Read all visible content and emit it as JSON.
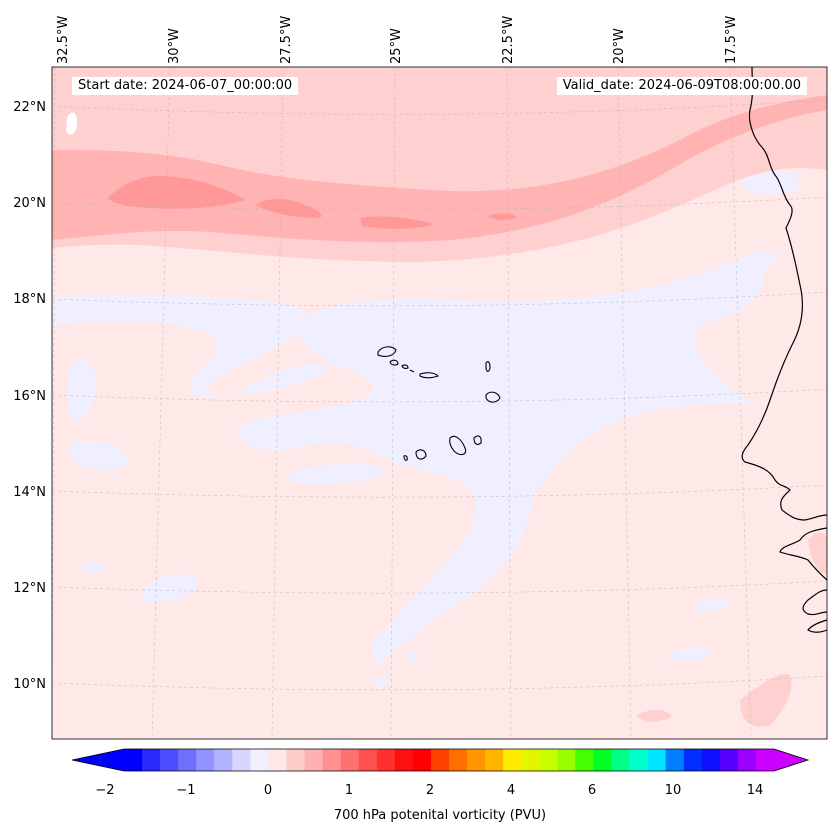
{
  "header": {
    "start_date": "Start date: 2024-06-07_00:00:00",
    "valid_date": "Valid_date: 2024-06-09T08:00:00.00"
  },
  "axes": {
    "lon_labels": [
      "32.5°W",
      "30°W",
      "27.5°W",
      "25°W",
      "22.5°W",
      "20°W",
      "17.5°W"
    ],
    "lat_labels": [
      "22°N",
      "20°N",
      "18°N",
      "16°N",
      "14°N",
      "12°N",
      "10°N"
    ]
  },
  "colorbar": {
    "title": "700 hPa potenital vorticity (PVU)",
    "tick_labels": [
      "−2",
      "−1",
      "0",
      "1",
      "2",
      "4",
      "6",
      "10",
      "14"
    ],
    "colors": [
      "#0000ff",
      "#2a2aff",
      "#4d4dff",
      "#7070ff",
      "#9393ff",
      "#b3b3ff",
      "#d6d6ff",
      "#efefff",
      "#ffe8e8",
      "#ffcccc",
      "#ffb0b0",
      "#ff9090",
      "#ff7070",
      "#ff5050",
      "#ff3030",
      "#ff1010",
      "#ff0000",
      "#ff4000",
      "#ff7000",
      "#ff9500",
      "#ffb400",
      "#ffea00",
      "#e4f500",
      "#c8ff00",
      "#99ff00",
      "#44ff00",
      "#00ff22",
      "#00ff88",
      "#00ffcc",
      "#00e5ff",
      "#0080ff",
      "#0030ff",
      "#1010ff",
      "#5500ff",
      "#9a00ff",
      "#cc00ff"
    ]
  },
  "map": {
    "background": "#ffe8e8",
    "coastline_color": "#000000"
  }
}
